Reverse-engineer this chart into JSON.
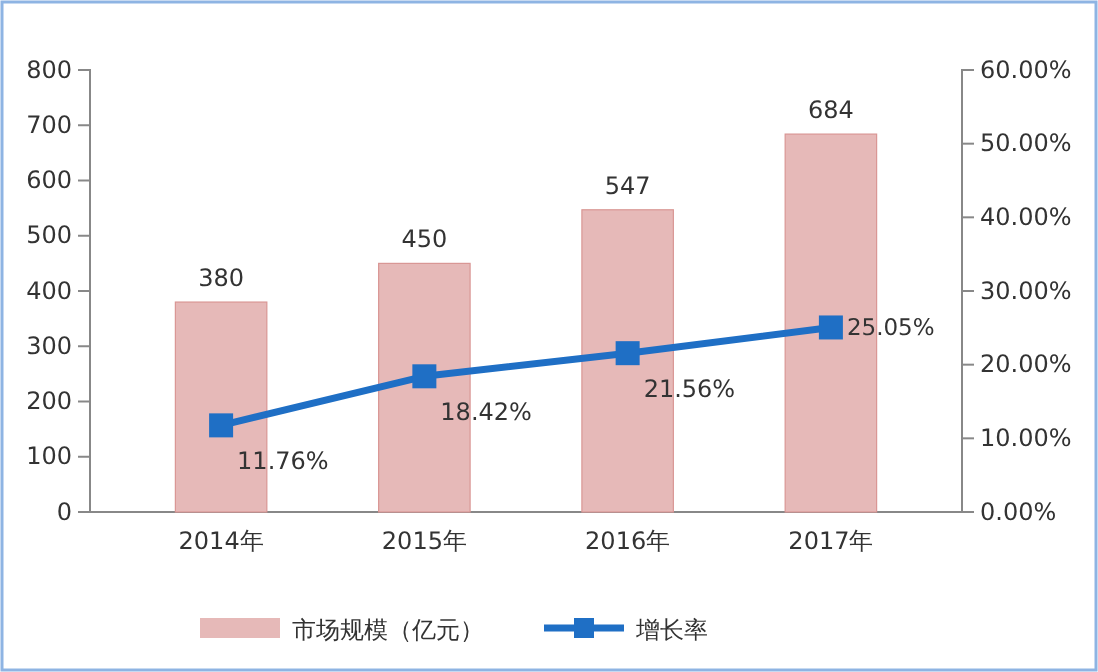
{
  "chart_data": {
    "type": "bar",
    "categories": [
      "2014年",
      "2015年",
      "2016年",
      "2017年"
    ],
    "series": [
      {
        "name": "市场规模（亿元）",
        "color": "#e6b9b8",
        "values": [
          380,
          450,
          547,
          684
        ],
        "value_labels": [
          "380",
          "450",
          "547",
          "684"
        ]
      },
      {
        "name": "增长率",
        "type": "line",
        "axis": "y2",
        "color": "#1f6fc5",
        "values": [
          11.76,
          18.42,
          21.56,
          25.05
        ],
        "value_labels": [
          "11.76%",
          "18.42%",
          "21.56%",
          "25.05%"
        ]
      }
    ],
    "ylim": [
      0,
      800
    ],
    "yticks": [
      0,
      100,
      200,
      300,
      400,
      500,
      600,
      700,
      800
    ],
    "y2lim": [
      0,
      60
    ],
    "y2ticks": [
      {
        "value": 0,
        "label": "0.00%"
      },
      {
        "value": 10,
        "label": "10.00%"
      },
      {
        "value": 20,
        "label": "20.00%"
      },
      {
        "value": 30,
        "label": "30.00%"
      },
      {
        "value": 40,
        "label": "40.00%"
      },
      {
        "value": 50,
        "label": "50.00%"
      },
      {
        "value": 60,
        "label": "60.00%"
      }
    ],
    "grid": false,
    "legend": "bottom",
    "marker": "square",
    "line_style": "solid"
  }
}
